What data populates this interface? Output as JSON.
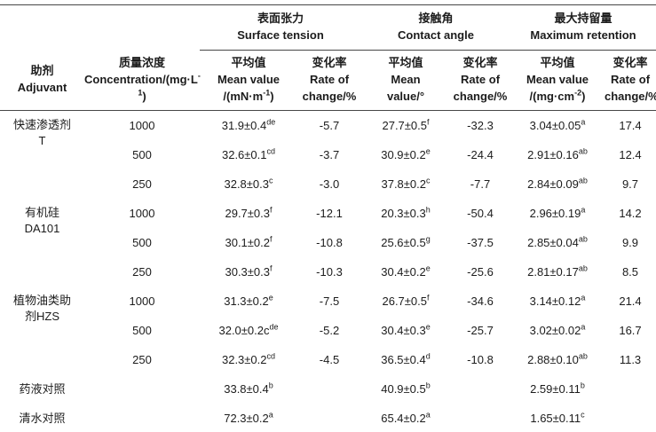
{
  "page": {
    "background": "#ffffff",
    "text_color": "#1c1c1c",
    "rule_color": "#474747"
  },
  "chart_data": {
    "type": "table",
    "title": "",
    "columns": [
      "助剂 Adjuvant",
      "质量浓度 Concentration/(mg·L-1)",
      "表面张力 Surface tension - 平均值 Mean value /(mN·m-1)",
      "表面张力 Surface tension - 变化率 Rate of change/%",
      "接触角 Contact angle - 平均值 Mean value/°",
      "接触角 Contact angle - 变化率 Rate of change/%",
      "最大持留量 Maximum retention - 平均值 Mean value /(mg·cm-2)",
      "最大持留量 Maximum retention - 变化率 Rate of change/%"
    ],
    "records": [
      [
        "快速渗透剂T",
        "1000",
        "31.9±0.4 de",
        "-5.7",
        "27.7±0.5 f",
        "-32.3",
        "3.04±0.05 a",
        "17.4"
      ],
      [
        "快速渗透剂T",
        "500",
        "32.6±0.1 cd",
        "-3.7",
        "30.9±0.2 e",
        "-24.4",
        "2.91±0.16 ab",
        "12.4"
      ],
      [
        "快速渗透剂T",
        "250",
        "32.8±0.3 c",
        "-3.0",
        "37.8±0.2 c",
        "-7.7",
        "2.84±0.09 ab",
        "9.7"
      ],
      [
        "有机硅DA101",
        "1000",
        "29.7±0.3 f",
        "-12.1",
        "20.3±0.3 h",
        "-50.4",
        "2.96±0.19 a",
        "14.2"
      ],
      [
        "有机硅DA101",
        "500",
        "30.1±0.2 f",
        "-10.8",
        "25.6±0.5 g",
        "-37.5",
        "2.85±0.04 ab",
        "9.9"
      ],
      [
        "有机硅DA101",
        "250",
        "30.3±0.3 f",
        "-10.3",
        "30.4±0.2 e",
        "-25.6",
        "2.81±0.17 ab",
        "8.5"
      ],
      [
        "植物油类助剂HZS",
        "1000",
        "31.3±0.2 e",
        "-7.5",
        "26.7±0.5 f",
        "-34.6",
        "3.14±0.12 a",
        "21.4"
      ],
      [
        "植物油类助剂HZS",
        "500",
        "32.0±0.2c de",
        "-5.2",
        "30.4±0.3 e",
        "-25.7",
        "3.02±0.02 a",
        "16.7"
      ],
      [
        "植物油类助剂HZS",
        "250",
        "32.3±0.2 cd",
        "-4.5",
        "36.5±0.4 d",
        "-10.8",
        "2.88±0.10 ab",
        "11.3"
      ],
      [
        "药液对照",
        "",
        "33.8±0.4 b",
        "",
        "40.9±0.5 b",
        "",
        "2.59±0.11 b",
        ""
      ],
      [
        "清水对照",
        "",
        "72.3±0.2 a",
        "",
        "65.4±0.2 a",
        "",
        "1.65±0.11 c",
        ""
      ]
    ]
  },
  "table": {
    "header": {
      "adjuvant": [
        {
          "t": "助剂"
        },
        {
          "n": 1
        },
        {
          "t": "Adjuvant"
        }
      ],
      "concentration": [
        {
          "t": "质量浓度"
        },
        {
          "n": 1
        },
        {
          "t": "Concentration/(mg·L"
        },
        {
          "s": "-1"
        },
        {
          "t": ")"
        }
      ],
      "groups": [
        [
          {
            "t": "表面张力"
          },
          {
            "n": 1
          },
          {
            "t": "Surface tension"
          }
        ],
        [
          {
            "t": "接触角"
          },
          {
            "n": 1
          },
          {
            "t": "Contact angle"
          }
        ],
        [
          {
            "t": "最大持留量"
          },
          {
            "n": 1
          },
          {
            "t": "Maximum retention"
          }
        ]
      ],
      "subs": [
        [
          {
            "t": "平均值"
          },
          {
            "n": 1
          },
          {
            "t": "Mean value"
          },
          {
            "n": 1
          },
          {
            "t": "/(mN·m"
          },
          {
            "s": "-1"
          },
          {
            "t": ")"
          }
        ],
        [
          {
            "t": "变化率"
          },
          {
            "n": 1
          },
          {
            "t": "Rate of"
          },
          {
            "n": 1
          },
          {
            "t": "change/%"
          }
        ],
        [
          {
            "t": "平均值"
          },
          {
            "n": 1
          },
          {
            "t": "Mean"
          },
          {
            "n": 1
          },
          {
            "t": "value/°"
          }
        ],
        [
          {
            "t": "变化率"
          },
          {
            "n": 1
          },
          {
            "t": "Rate of"
          },
          {
            "n": 1
          },
          {
            "t": "change/%"
          }
        ],
        [
          {
            "t": "平均值"
          },
          {
            "n": 1
          },
          {
            "t": "Mean value"
          },
          {
            "n": 1
          },
          {
            "t": "/(mg·cm"
          },
          {
            "s": "-2"
          },
          {
            "t": ")"
          }
        ],
        [
          {
            "t": "变化率"
          },
          {
            "n": 1
          },
          {
            "t": "Rate of"
          },
          {
            "n": 1
          },
          {
            "t": "change/%"
          }
        ]
      ]
    },
    "rows": [
      {
        "adjuvant": [
          {
            "t": "快速渗透剂"
          },
          {
            "n": 1
          },
          {
            "t": "T"
          }
        ],
        "span": 3,
        "conc": "1000",
        "vals": [
          [
            {
              "t": "31.9±0.4"
            },
            {
              "s": "de"
            }
          ],
          [
            {
              "t": "-5.7"
            }
          ],
          [
            {
              "t": "27.7±0.5"
            },
            {
              "s": "f"
            }
          ],
          [
            {
              "t": "-32.3"
            }
          ],
          [
            {
              "t": "3.04±0.05"
            },
            {
              "s": "a"
            }
          ],
          [
            {
              "t": "17.4"
            }
          ]
        ]
      },
      {
        "conc": "500",
        "vals": [
          [
            {
              "t": "32.6±0.1"
            },
            {
              "s": "cd"
            }
          ],
          [
            {
              "t": "-3.7"
            }
          ],
          [
            {
              "t": "30.9±0.2"
            },
            {
              "s": "e"
            }
          ],
          [
            {
              "t": "-24.4"
            }
          ],
          [
            {
              "t": "2.91±0.16"
            },
            {
              "s": "ab"
            }
          ],
          [
            {
              "t": "12.4"
            }
          ]
        ]
      },
      {
        "conc": "250",
        "vals": [
          [
            {
              "t": "32.8±0.3"
            },
            {
              "s": "c"
            }
          ],
          [
            {
              "t": "-3.0"
            }
          ],
          [
            {
              "t": "37.8±0.2"
            },
            {
              "s": "c"
            }
          ],
          [
            {
              "t": "-7.7"
            }
          ],
          [
            {
              "t": "2.84±0.09"
            },
            {
              "s": "ab"
            }
          ],
          [
            {
              "t": "9.7"
            }
          ]
        ]
      },
      {
        "adjuvant": [
          {
            "t": "有机硅"
          },
          {
            "n": 1
          },
          {
            "t": "DA101"
          }
        ],
        "span": 3,
        "conc": "1000",
        "vals": [
          [
            {
              "t": "29.7±0.3"
            },
            {
              "s": "f"
            }
          ],
          [
            {
              "t": "-12.1"
            }
          ],
          [
            {
              "t": "20.3±0.3"
            },
            {
              "s": "h"
            }
          ],
          [
            {
              "t": "-50.4"
            }
          ],
          [
            {
              "t": "2.96±0.19"
            },
            {
              "s": "a"
            }
          ],
          [
            {
              "t": "14.2"
            }
          ]
        ]
      },
      {
        "conc": "500",
        "vals": [
          [
            {
              "t": "30.1±0.2"
            },
            {
              "s": "f"
            }
          ],
          [
            {
              "t": "-10.8"
            }
          ],
          [
            {
              "t": "25.6±0.5"
            },
            {
              "s": "g"
            }
          ],
          [
            {
              "t": "-37.5"
            }
          ],
          [
            {
              "t": "2.85±0.04"
            },
            {
              "s": "ab"
            }
          ],
          [
            {
              "t": "9.9"
            }
          ]
        ]
      },
      {
        "conc": "250",
        "vals": [
          [
            {
              "t": "30.3±0.3"
            },
            {
              "s": "f"
            }
          ],
          [
            {
              "t": "-10.3"
            }
          ],
          [
            {
              "t": "30.4±0.2"
            },
            {
              "s": "e"
            }
          ],
          [
            {
              "t": "-25.6"
            }
          ],
          [
            {
              "t": "2.81±0.17"
            },
            {
              "s": "ab"
            }
          ],
          [
            {
              "t": "8.5"
            }
          ]
        ]
      },
      {
        "adjuvant": [
          {
            "t": "植物油类助"
          },
          {
            "n": 1
          },
          {
            "t": "剂HZS"
          }
        ],
        "span": 3,
        "conc": "1000",
        "vals": [
          [
            {
              "t": "31.3±0.2"
            },
            {
              "s": "e"
            }
          ],
          [
            {
              "t": "-7.5"
            }
          ],
          [
            {
              "t": "26.7±0.5"
            },
            {
              "s": "f"
            }
          ],
          [
            {
              "t": "-34.6"
            }
          ],
          [
            {
              "t": "3.14±0.12"
            },
            {
              "s": "a"
            }
          ],
          [
            {
              "t": "21.4"
            }
          ]
        ]
      },
      {
        "conc": "500",
        "vals": [
          [
            {
              "t": "32.0±0.2c"
            },
            {
              "s": "de"
            }
          ],
          [
            {
              "t": "-5.2"
            }
          ],
          [
            {
              "t": "30.4±0.3"
            },
            {
              "s": "e"
            }
          ],
          [
            {
              "t": "-25.7"
            }
          ],
          [
            {
              "t": "3.02±0.02"
            },
            {
              "s": "a"
            }
          ],
          [
            {
              "t": "16.7"
            }
          ]
        ]
      },
      {
        "conc": "250",
        "vals": [
          [
            {
              "t": "32.3±0.2"
            },
            {
              "s": "cd"
            }
          ],
          [
            {
              "t": "-4.5"
            }
          ],
          [
            {
              "t": "36.5±0.4"
            },
            {
              "s": "d"
            }
          ],
          [
            {
              "t": "-10.8"
            }
          ],
          [
            {
              "t": "2.88±0.10"
            },
            {
              "s": "ab"
            }
          ],
          [
            {
              "t": "11.3"
            }
          ]
        ]
      },
      {
        "adjuvant": [
          {
            "t": "药液对照"
          }
        ],
        "span": 1,
        "conc": "",
        "vals": [
          [
            {
              "t": "33.8±0.4"
            },
            {
              "s": "b"
            }
          ],
          [],
          [
            {
              "t": "40.9±0.5"
            },
            {
              "s": "b"
            }
          ],
          [],
          [
            {
              "t": "2.59±0.11"
            },
            {
              "s": "b"
            }
          ],
          []
        ]
      },
      {
        "adjuvant": [
          {
            "t": "清水对照"
          }
        ],
        "span": 1,
        "conc": "",
        "vals": [
          [
            {
              "t": "72.3±0.2"
            },
            {
              "s": "a"
            }
          ],
          [],
          [
            {
              "t": "65.4±0.2"
            },
            {
              "s": "a"
            }
          ],
          [],
          [
            {
              "t": "1.65±0.11"
            },
            {
              "s": "c"
            }
          ],
          []
        ]
      }
    ]
  }
}
